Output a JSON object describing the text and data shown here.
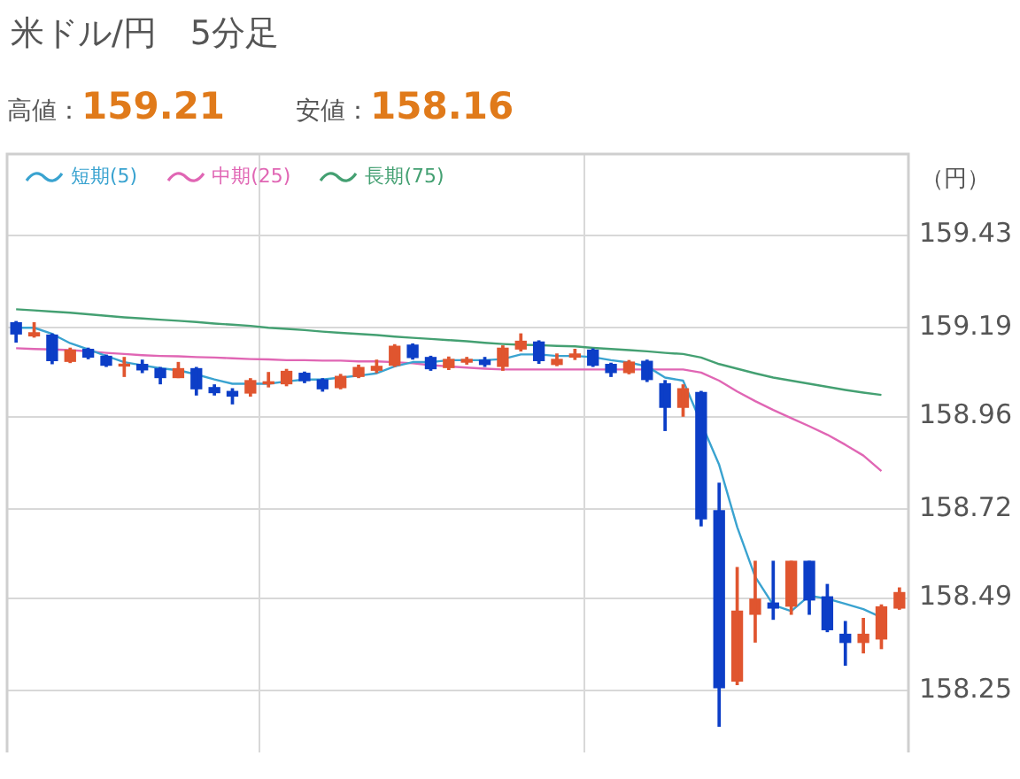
{
  "chart_data": {
    "type": "candlestick",
    "title": "米ドル/円　5分足",
    "annotations": [
      "高値：159.21",
      "安値：158.16"
    ],
    "ylabel": "（円）",
    "categories": [
      null,
      null,
      null,
      null,
      null,
      null,
      null,
      null,
      null,
      null,
      null,
      null,
      null,
      null,
      null,
      null,
      null,
      null,
      null,
      null,
      null,
      null,
      null,
      null,
      null,
      null,
      null,
      null,
      null,
      null,
      null,
      null,
      null,
      null,
      null,
      null,
      null,
      null,
      null,
      null,
      null,
      null,
      null,
      null,
      null,
      null,
      null,
      null,
      null,
      null
    ],
    "ohlc": [
      [
        159.203,
        159.206,
        159.153,
        159.174
      ],
      [
        159.169,
        159.203,
        159.166,
        159.177
      ],
      [
        159.171,
        159.174,
        159.097,
        159.105
      ],
      [
        159.103,
        159.137,
        159.1,
        159.132
      ],
      [
        159.134,
        159.137,
        159.11,
        159.114
      ],
      [
        159.116,
        159.119,
        159.09,
        159.093
      ],
      [
        159.091,
        159.113,
        159.064,
        159.095
      ],
      [
        159.095,
        159.106,
        159.074,
        159.081
      ],
      [
        159.084,
        159.087,
        159.045,
        159.061
      ],
      [
        159.061,
        159.1,
        159.061,
        159.084
      ],
      [
        159.084,
        159.087,
        159.016,
        159.032
      ],
      [
        159.035,
        159.042,
        159.016,
        159.022
      ],
      [
        159.025,
        159.032,
        158.993,
        159.013
      ],
      [
        159.021,
        159.058,
        159.013,
        159.053
      ],
      [
        159.045,
        159.074,
        159.037,
        159.05
      ],
      [
        159.045,
        159.082,
        159.04,
        159.077
      ],
      [
        159.072,
        159.075,
        159.048,
        159.053
      ],
      [
        159.055,
        159.058,
        159.026,
        159.032
      ],
      [
        159.035,
        159.069,
        159.032,
        159.064
      ],
      [
        159.064,
        159.093,
        159.061,
        159.087
      ],
      [
        159.08,
        159.106,
        159.074,
        159.09
      ],
      [
        159.093,
        159.146,
        159.09,
        159.142
      ],
      [
        159.145,
        159.148,
        159.109,
        159.113
      ],
      [
        159.113,
        159.116,
        159.08,
        159.084
      ],
      [
        159.087,
        159.114,
        159.082,
        159.108
      ],
      [
        159.101,
        159.113,
        159.096,
        159.108
      ],
      [
        159.106,
        159.113,
        159.09,
        159.095
      ],
      [
        159.09,
        159.143,
        159.08,
        159.137
      ],
      [
        159.135,
        159.174,
        159.13,
        159.155
      ],
      [
        159.153,
        159.156,
        159.098,
        159.105
      ],
      [
        159.095,
        159.122,
        159.092,
        159.108
      ],
      [
        159.114,
        159.134,
        159.108,
        159.122
      ],
      [
        159.132,
        159.135,
        159.09,
        159.093
      ],
      [
        159.095,
        159.098,
        159.064,
        159.074
      ],
      [
        159.074,
        159.105,
        159.071,
        159.101
      ],
      [
        159.103,
        159.106,
        159.051,
        159.056
      ],
      [
        159.045,
        159.053,
        158.924,
        158.984
      ],
      [
        158.984,
        159.042,
        158.961,
        159.032
      ],
      [
        159.022,
        159.025,
        158.677,
        158.695
      ],
      [
        158.716,
        158.787,
        158.158,
        158.258
      ],
      [
        158.275,
        158.569,
        158.266,
        158.456
      ],
      [
        158.448,
        158.585,
        158.376,
        158.487
      ],
      [
        158.477,
        158.585,
        158.435,
        158.464
      ],
      [
        158.469,
        158.585,
        158.448,
        158.585
      ],
      [
        158.585,
        158.585,
        158.448,
        158.485
      ],
      [
        158.493,
        158.525,
        158.403,
        158.408
      ],
      [
        158.396,
        158.429,
        158.316,
        158.375
      ],
      [
        158.375,
        158.437,
        158.348,
        158.396
      ],
      [
        158.384,
        158.472,
        158.359,
        158.467
      ],
      [
        158.464,
        158.516,
        158.461,
        158.504
      ]
    ],
    "colors": [
      "#0c3ec7",
      "#e0552f",
      "#0c3ec7",
      "#e0552f",
      "#0c3ec7",
      "#0c3ec7",
      "#e0552f",
      "#0c3ec7",
      "#0c3ec7",
      "#e0552f",
      "#0c3ec7",
      "#0c3ec7",
      "#0c3ec7",
      "#e0552f",
      "#e0552f",
      "#e0552f",
      "#0c3ec7",
      "#0c3ec7",
      "#e0552f",
      "#e0552f",
      "#e0552f",
      "#e0552f",
      "#0c3ec7",
      "#0c3ec7",
      "#e0552f",
      "#e0552f",
      "#0c3ec7",
      "#e0552f",
      "#e0552f",
      "#0c3ec7",
      "#e0552f",
      "#e0552f",
      "#0c3ec7",
      "#0c3ec7",
      "#e0552f",
      "#0c3ec7",
      "#0c3ec7",
      "#e0552f",
      "#0c3ec7",
      "#0c3ec7",
      "#e0552f",
      "#e0552f",
      "#0c3ec7",
      "#e0552f",
      "#0c3ec7",
      "#0c3ec7",
      "#0c3ec7",
      "#e0552f",
      "#e0552f",
      "#e0552f"
    ],
    "series": [
      {
        "name": "短期(5)",
        "type": "line",
        "color": "#3aa3d0",
        "values": [
          159.19,
          159.19,
          159.174,
          159.15,
          159.134,
          159.117,
          159.101,
          159.093,
          159.085,
          159.08,
          159.069,
          159.056,
          159.045,
          159.045,
          159.045,
          159.051,
          159.056,
          159.056,
          159.061,
          159.066,
          159.072,
          159.09,
          159.101,
          159.101,
          159.106,
          159.106,
          159.106,
          159.109,
          159.121,
          159.121,
          159.117,
          159.117,
          159.114,
          159.106,
          159.1,
          159.09,
          159.061,
          159.053,
          null,
          158.835,
          158.674,
          158.545,
          158.472,
          158.456,
          158.496,
          158.488,
          158.475,
          158.461,
          158.44,
          null
        ]
      },
      {
        "name": "中期(25)",
        "type": "line",
        "color": "#e066b4",
        "values": [
          159.137,
          159.135,
          159.134,
          159.132,
          159.129,
          159.125,
          159.122,
          159.119,
          159.117,
          159.116,
          159.114,
          159.113,
          159.111,
          159.109,
          159.108,
          159.106,
          159.106,
          159.105,
          159.105,
          159.103,
          159.103,
          159.101,
          159.098,
          159.093,
          159.09,
          159.087,
          159.084,
          159.082,
          159.082,
          159.082,
          159.082,
          159.082,
          159.082,
          159.082,
          159.082,
          159.082,
          159.082,
          159.082,
          159.074,
          159.053,
          159.025,
          159.0,
          158.977,
          158.956,
          158.935,
          158.913,
          158.887,
          158.859,
          158.819,
          null
        ]
      },
      {
        "name": "長期(75)",
        "type": "line",
        "color": "#44a072",
        "values": [
          159.238,
          159.235,
          159.232,
          159.229,
          159.225,
          159.221,
          159.217,
          159.214,
          159.211,
          159.208,
          159.205,
          159.201,
          159.198,
          159.195,
          159.19,
          159.187,
          159.184,
          159.18,
          159.177,
          159.174,
          159.171,
          159.167,
          159.164,
          159.161,
          159.158,
          159.155,
          159.151,
          159.148,
          159.146,
          159.145,
          159.143,
          159.142,
          159.138,
          159.135,
          159.132,
          159.129,
          159.125,
          159.122,
          159.113,
          159.096,
          159.084,
          159.072,
          159.061,
          159.053,
          159.045,
          159.037,
          159.029,
          159.022,
          159.016,
          null
        ]
      }
    ],
    "ylim": [
      158.09,
      159.64
    ],
    "yticks": [
      159.43,
      159.19,
      158.96,
      158.72,
      158.49,
      158.25
    ],
    "grid": true,
    "legend": "top left",
    "tick_labels": "y"
  }
}
